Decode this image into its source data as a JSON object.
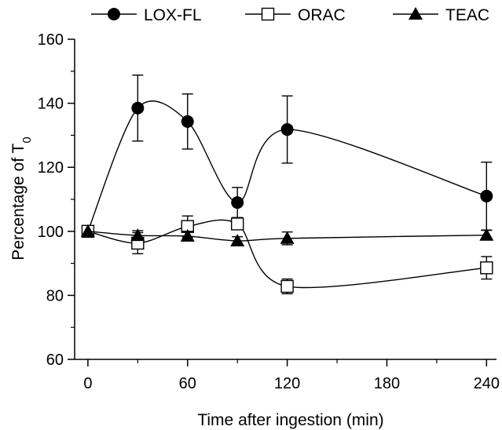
{
  "chart_data": {
    "type": "line",
    "xlabel": "Time after ingestion (min)",
    "ylabel": "Percentage of T",
    "ylabel_subscript": "0",
    "xlim": [
      -8,
      246
    ],
    "ylim": [
      60,
      160
    ],
    "x_ticks": [
      0,
      60,
      120,
      180,
      240
    ],
    "y_ticks": [
      60,
      80,
      100,
      120,
      140,
      160
    ],
    "x_tick_labels": [
      "0",
      "60",
      "120",
      "180",
      "240"
    ],
    "y_tick_labels": [
      "60",
      "80",
      "100",
      "120",
      "140",
      "160"
    ],
    "legend_position": "top",
    "series": [
      {
        "name": "LOX-FL",
        "marker": "filled-circle",
        "x": [
          0,
          30,
          60,
          90,
          120,
          240
        ],
        "y": [
          100,
          138.5,
          134.3,
          109,
          131.8,
          111
        ],
        "err": [
          0,
          10.3,
          8.6,
          4.7,
          10.5,
          10.6
        ]
      },
      {
        "name": "ORAC",
        "marker": "open-square",
        "x": [
          0,
          30,
          60,
          90,
          120,
          240
        ],
        "y": [
          100,
          96.3,
          101.5,
          102.3,
          82.8,
          88.6
        ],
        "err": [
          0,
          3.3,
          3.3,
          1.5,
          2.3,
          3.5
        ]
      },
      {
        "name": "TEAC",
        "marker": "filled-triangle",
        "x": [
          0,
          30,
          60,
          90,
          120,
          240
        ],
        "y": [
          100,
          98.7,
          98.5,
          97,
          97.8,
          98.8
        ],
        "err": [
          0,
          1.5,
          1.5,
          1.3,
          2.0,
          1.5
        ]
      }
    ]
  }
}
